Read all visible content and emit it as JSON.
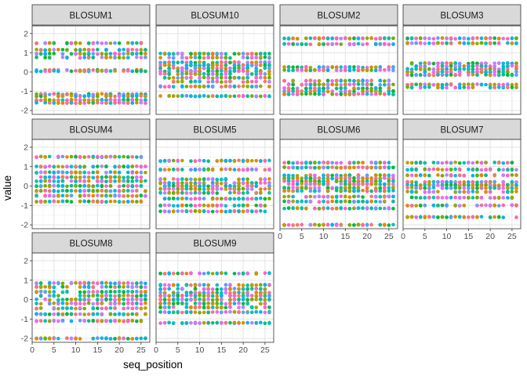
{
  "chart_data": {
    "type": "scatter",
    "facet_wrap": {
      "ncol": 4,
      "scales": "fixed"
    },
    "xlabel": "seq_position",
    "ylabel": "value",
    "xlim": [
      0,
      27
    ],
    "ylim": [
      -2.2,
      2.4
    ],
    "x_ticks": [
      0,
      5,
      10,
      15,
      20,
      25
    ],
    "y_ticks": [
      -2,
      -1,
      0,
      1,
      2
    ],
    "grid": true,
    "legend": "none",
    "x_positions": [
      1,
      26
    ],
    "point_colors": [
      "#F8766D",
      "#E58700",
      "#C99800",
      "#A3A500",
      "#6BB100",
      "#00BA38",
      "#00BF7D",
      "#00C0AF",
      "#00BCD8",
      "#00B0F6",
      "#619CFF",
      "#B983FF",
      "#E76BF3",
      "#FD61D1",
      "#FF67A4"
    ],
    "panels": [
      {
        "name": "BLOSUM1",
        "levels": [
          1.5,
          1.15,
          0.95,
          0.75,
          0.1,
          0.05,
          -1.15,
          -1.25,
          -1.45,
          -1.6
        ]
      },
      {
        "name": "BLOSUM10",
        "levels": [
          0.95,
          0.75,
          0.5,
          0.35,
          0.2,
          0.05,
          -0.1,
          -0.3,
          -0.5,
          -0.75,
          -1.25
        ]
      },
      {
        "name": "BLOSUM2",
        "levels": [
          1.75,
          1.45,
          0.25,
          0.1,
          -0.45,
          -0.65,
          -0.85,
          -1.0,
          -1.15
        ]
      },
      {
        "name": "BLOSUM3",
        "levels": [
          1.75,
          1.5,
          0.45,
          0.3,
          0.15,
          0.0,
          -0.15,
          -0.65,
          -0.8
        ]
      },
      {
        "name": "BLOSUM4",
        "levels": [
          1.5,
          1.0,
          0.7,
          0.45,
          0.25,
          0.0,
          -0.25,
          -0.5,
          -0.8
        ]
      },
      {
        "name": "BLOSUM5",
        "levels": [
          1.3,
          0.85,
          0.35,
          0.15,
          0.0,
          -0.15,
          -0.35,
          -0.65,
          -1.0,
          -1.3
        ]
      },
      {
        "name": "BLOSUM6",
        "levels": [
          1.2,
          0.95,
          0.55,
          0.4,
          0.25,
          0.1,
          -0.1,
          -0.25,
          -0.55,
          -0.8,
          -1.15,
          -2.0
        ]
      },
      {
        "name": "BLOSUM7",
        "levels": [
          1.2,
          0.85,
          0.55,
          0.2,
          0.05,
          -0.1,
          -0.3,
          -0.6,
          -1.0,
          -1.6
        ]
      },
      {
        "name": "BLOSUM8",
        "levels": [
          0.85,
          0.65,
          0.4,
          0.2,
          0.0,
          -0.2,
          -0.45,
          -0.75,
          -1.1,
          -2.0
        ]
      },
      {
        "name": "BLOSUM9",
        "levels": [
          1.35,
          0.75,
          0.55,
          0.35,
          0.2,
          0.0,
          -0.2,
          -0.4,
          -0.65,
          -1.2
        ]
      }
    ]
  }
}
